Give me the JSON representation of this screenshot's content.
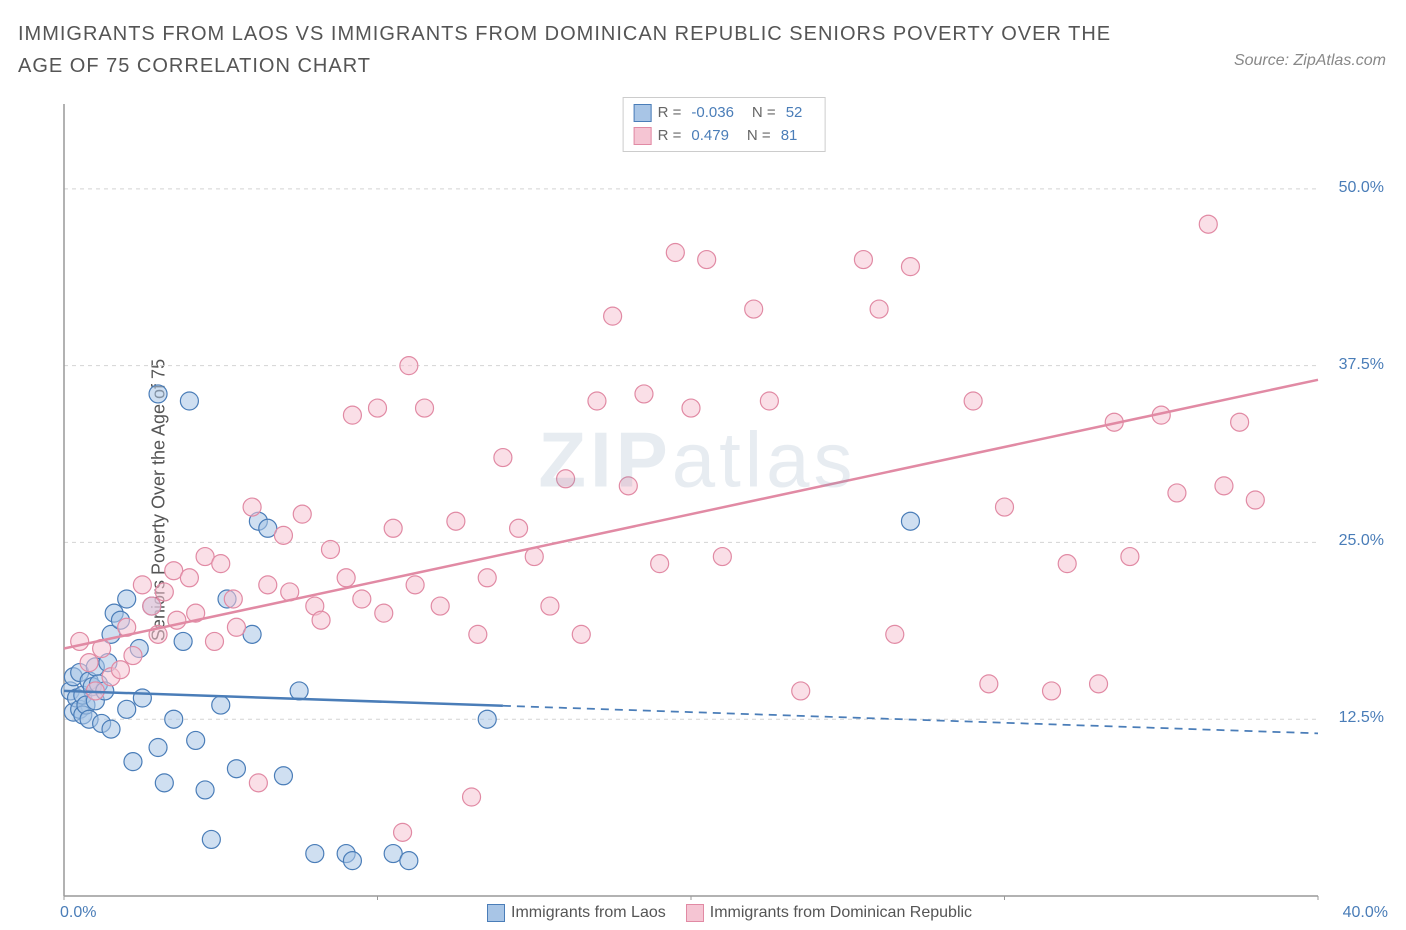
{
  "title": "IMMIGRANTS FROM LAOS VS IMMIGRANTS FROM DOMINICAN REPUBLIC SENIORS POVERTY OVER THE AGE OF 75 CORRELATION CHART",
  "source": "Source: ZipAtlas.com",
  "ylabel": "Seniors Poverty Over the Age of 75",
  "watermark_a": "ZIP",
  "watermark_b": "atlas",
  "chart": {
    "type": "scatter",
    "background_color": "#ffffff",
    "axis_color": "#999999",
    "grid_color": "#d4d4d4",
    "grid_dash": "4,4",
    "xlim": [
      0,
      40
    ],
    "ylim": [
      0,
      56
    ],
    "x_ticks": [
      0,
      10,
      20,
      30,
      40
    ],
    "x_tick_labels": [
      "0.0%",
      "",
      "",
      "",
      "40.0%"
    ],
    "y_right_ticks": [
      12.5,
      25.0,
      37.5,
      50.0
    ],
    "y_right_labels": [
      "12.5%",
      "25.0%",
      "37.5%",
      "50.0%"
    ],
    "tick_color": "#4a7db8",
    "marker_radius": 9,
    "marker_opacity": 0.55,
    "line_width": 2.5,
    "series": [
      {
        "name": "Immigrants from Laos",
        "color_stroke": "#4a7db8",
        "color_fill": "#a8c5e6",
        "r": "-0.036",
        "n": "52",
        "trend": {
          "x1": 0,
          "y1": 14.5,
          "x2": 40,
          "y2": 11.5,
          "solid_until_x": 14
        },
        "points": [
          [
            0.2,
            14.5
          ],
          [
            0.3,
            13.0
          ],
          [
            0.3,
            15.5
          ],
          [
            0.4,
            14.0
          ],
          [
            0.5,
            13.2
          ],
          [
            0.5,
            15.8
          ],
          [
            0.6,
            12.8
          ],
          [
            0.6,
            14.2
          ],
          [
            0.7,
            13.5
          ],
          [
            0.8,
            15.2
          ],
          [
            0.8,
            12.5
          ],
          [
            0.9,
            14.8
          ],
          [
            1.0,
            16.2
          ],
          [
            1.0,
            13.8
          ],
          [
            1.1,
            15.0
          ],
          [
            1.2,
            12.2
          ],
          [
            1.3,
            14.5
          ],
          [
            1.4,
            16.5
          ],
          [
            1.5,
            11.8
          ],
          [
            1.5,
            18.5
          ],
          [
            1.6,
            20.0
          ],
          [
            1.8,
            19.5
          ],
          [
            2.0,
            13.2
          ],
          [
            2.0,
            21.0
          ],
          [
            2.2,
            9.5
          ],
          [
            2.4,
            17.5
          ],
          [
            2.5,
            14.0
          ],
          [
            2.8,
            20.5
          ],
          [
            3.0,
            35.5
          ],
          [
            3.0,
            10.5
          ],
          [
            3.2,
            8.0
          ],
          [
            3.5,
            12.5
          ],
          [
            3.8,
            18.0
          ],
          [
            4.0,
            35.0
          ],
          [
            4.2,
            11.0
          ],
          [
            4.5,
            7.5
          ],
          [
            4.7,
            4.0
          ],
          [
            5.0,
            13.5
          ],
          [
            5.2,
            21.0
          ],
          [
            5.5,
            9.0
          ],
          [
            6.0,
            18.5
          ],
          [
            6.2,
            26.5
          ],
          [
            6.5,
            26.0
          ],
          [
            7.0,
            8.5
          ],
          [
            7.5,
            14.5
          ],
          [
            8.0,
            3.0
          ],
          [
            9.0,
            3.0
          ],
          [
            9.2,
            2.5
          ],
          [
            10.5,
            3.0
          ],
          [
            11.0,
            2.5
          ],
          [
            13.5,
            12.5
          ],
          [
            27.0,
            26.5
          ]
        ]
      },
      {
        "name": "Immigrants from Dominican Republic",
        "color_stroke": "#e18aa4",
        "color_fill": "#f5c5d3",
        "r": "0.479",
        "n": "81",
        "trend": {
          "x1": 0,
          "y1": 17.5,
          "x2": 40,
          "y2": 36.5,
          "solid_until_x": 40
        },
        "points": [
          [
            0.5,
            18.0
          ],
          [
            0.8,
            16.5
          ],
          [
            1.0,
            14.5
          ],
          [
            1.2,
            17.5
          ],
          [
            1.5,
            15.5
          ],
          [
            1.8,
            16.0
          ],
          [
            2.0,
            19.0
          ],
          [
            2.2,
            17.0
          ],
          [
            2.5,
            22.0
          ],
          [
            2.8,
            20.5
          ],
          [
            3.0,
            18.5
          ],
          [
            3.2,
            21.5
          ],
          [
            3.5,
            23.0
          ],
          [
            3.6,
            19.5
          ],
          [
            4.0,
            22.5
          ],
          [
            4.2,
            20.0
          ],
          [
            4.5,
            24.0
          ],
          [
            4.8,
            18.0
          ],
          [
            5.0,
            23.5
          ],
          [
            5.4,
            21.0
          ],
          [
            5.5,
            19.0
          ],
          [
            6.0,
            27.5
          ],
          [
            6.2,
            8.0
          ],
          [
            6.5,
            22.0
          ],
          [
            7.0,
            25.5
          ],
          [
            7.2,
            21.5
          ],
          [
            7.6,
            27.0
          ],
          [
            8.0,
            20.5
          ],
          [
            8.2,
            19.5
          ],
          [
            8.5,
            24.5
          ],
          [
            9.0,
            22.5
          ],
          [
            9.2,
            34.0
          ],
          [
            9.5,
            21.0
          ],
          [
            10.0,
            34.5
          ],
          [
            10.2,
            20.0
          ],
          [
            10.5,
            26.0
          ],
          [
            10.8,
            4.5
          ],
          [
            11.0,
            37.5
          ],
          [
            11.2,
            22.0
          ],
          [
            11.5,
            34.5
          ],
          [
            12.0,
            20.5
          ],
          [
            12.5,
            26.5
          ],
          [
            13.0,
            7.0
          ],
          [
            13.2,
            18.5
          ],
          [
            13.5,
            22.5
          ],
          [
            14.0,
            31.0
          ],
          [
            14.5,
            26.0
          ],
          [
            15.0,
            24.0
          ],
          [
            15.5,
            20.5
          ],
          [
            16.0,
            29.5
          ],
          [
            16.5,
            18.5
          ],
          [
            17.0,
            35.0
          ],
          [
            17.5,
            41.0
          ],
          [
            18.0,
            29.0
          ],
          [
            18.5,
            35.5
          ],
          [
            19.0,
            23.5
          ],
          [
            19.5,
            45.5
          ],
          [
            20.0,
            34.5
          ],
          [
            20.5,
            45.0
          ],
          [
            21.0,
            24.0
          ],
          [
            22.0,
            41.5
          ],
          [
            22.5,
            35.0
          ],
          [
            23.5,
            14.5
          ],
          [
            25.5,
            45.0
          ],
          [
            26.0,
            41.5
          ],
          [
            26.5,
            18.5
          ],
          [
            27.0,
            44.5
          ],
          [
            29.0,
            35.0
          ],
          [
            29.5,
            15.0
          ],
          [
            30.0,
            27.5
          ],
          [
            31.5,
            14.5
          ],
          [
            32.0,
            23.5
          ],
          [
            33.0,
            15.0
          ],
          [
            33.5,
            33.5
          ],
          [
            35.0,
            34.0
          ],
          [
            35.5,
            28.5
          ],
          [
            36.5,
            47.5
          ],
          [
            37.0,
            29.0
          ],
          [
            37.5,
            33.5
          ],
          [
            38.0,
            28.0
          ],
          [
            34.0,
            24.0
          ]
        ]
      }
    ]
  }
}
